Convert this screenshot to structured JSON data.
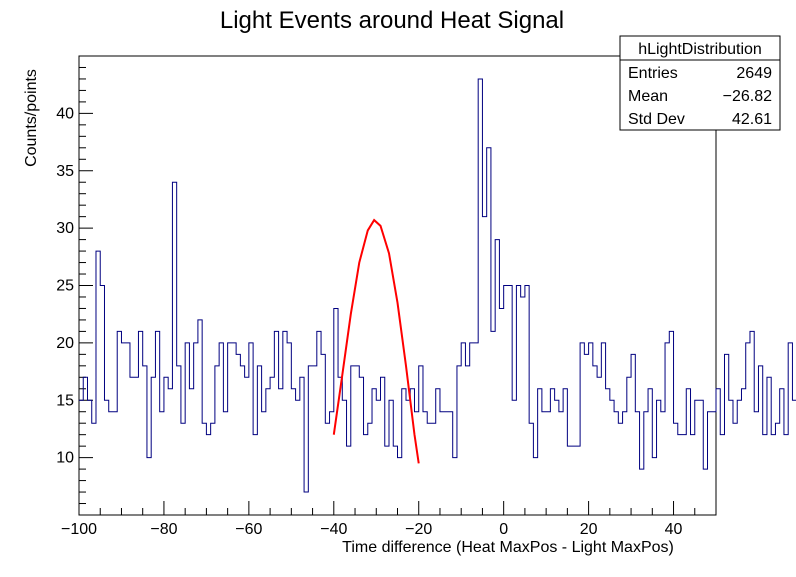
{
  "chart_data": {
    "type": "histogram",
    "title": "Light Events around Heat Signal",
    "xlabel": "Time difference (Heat MaxPos - Light MaxPos)",
    "ylabel": "Counts/points",
    "xlim": [
      -100,
      50
    ],
    "ylim": [
      5,
      45
    ],
    "bin_width": 1,
    "x_ticks": [
      -100,
      -80,
      -60,
      -40,
      -20,
      0,
      20,
      40
    ],
    "y_ticks": [
      10,
      15,
      20,
      25,
      30,
      35,
      40
    ],
    "line_color": "#000080",
    "fit_color": "#ff0000",
    "counts": [
      15,
      17,
      15,
      13,
      28,
      25,
      15,
      14,
      14,
      21,
      20,
      20,
      17,
      17,
      21,
      18,
      10,
      17,
      21,
      14,
      17,
      16,
      34,
      18,
      13,
      20,
      16,
      20,
      22,
      13,
      12,
      13,
      18,
      20,
      14,
      20,
      20,
      19,
      18,
      17,
      20,
      12,
      18,
      14,
      16,
      17,
      21,
      16,
      21,
      20,
      16,
      15,
      17,
      7,
      18,
      18,
      21,
      19,
      13,
      14,
      23,
      17,
      15,
      11,
      18,
      18,
      17,
      12,
      13,
      16,
      15,
      17,
      11,
      15,
      11,
      10,
      16,
      15,
      16,
      14,
      18,
      14,
      13,
      13,
      16,
      14,
      14,
      14,
      10,
      18,
      20,
      18,
      20,
      20,
      43,
      31,
      37,
      21,
      29,
      23,
      25,
      25,
      15,
      25,
      24,
      25,
      13,
      10,
      16,
      14,
      14,
      16,
      15,
      14,
      16,
      11,
      11,
      11,
      20,
      19,
      20,
      18,
      17,
      20,
      16,
      15,
      14,
      13,
      14,
      17,
      19,
      14,
      9,
      14,
      16,
      10,
      15,
      14,
      20,
      21,
      13,
      12,
      12,
      16,
      12,
      15,
      15,
      9,
      14,
      14,
      16,
      12,
      19,
      15,
      13,
      15,
      16,
      20,
      21,
      14,
      18,
      12,
      17,
      12,
      13,
      16,
      12,
      20,
      15,
      20,
      11,
      18,
      16,
      20,
      19,
      18,
      15,
      14,
      18,
      15,
      16,
      16,
      10,
      12,
      16,
      14,
      15,
      16,
      14,
      17,
      20,
      18,
      14,
      19,
      17,
      21,
      14,
      12,
      13,
      15
    ],
    "fit": {
      "type": "gaussian",
      "x_range": [
        -40,
        -20
      ],
      "points": [
        {
          "x": -40,
          "y": 12.0
        },
        {
          "x": -38,
          "y": 17.2
        },
        {
          "x": -36,
          "y": 22.5
        },
        {
          "x": -34,
          "y": 27.0
        },
        {
          "x": -32,
          "y": 29.8
        },
        {
          "x": -30.5,
          "y": 30.7
        },
        {
          "x": -29,
          "y": 30.2
        },
        {
          "x": -27,
          "y": 27.8
        },
        {
          "x": -25,
          "y": 23.5
        },
        {
          "x": -23,
          "y": 18.0
        },
        {
          "x": -21,
          "y": 12.0
        },
        {
          "x": -20,
          "y": 9.5
        }
      ]
    }
  },
  "stats_box": {
    "name": "hLightDistribution",
    "rows": [
      {
        "label": "Entries",
        "value": "2649"
      },
      {
        "label": "Mean",
        "value": "−26.82"
      },
      {
        "label": "Std Dev",
        "value": "42.61"
      }
    ]
  }
}
